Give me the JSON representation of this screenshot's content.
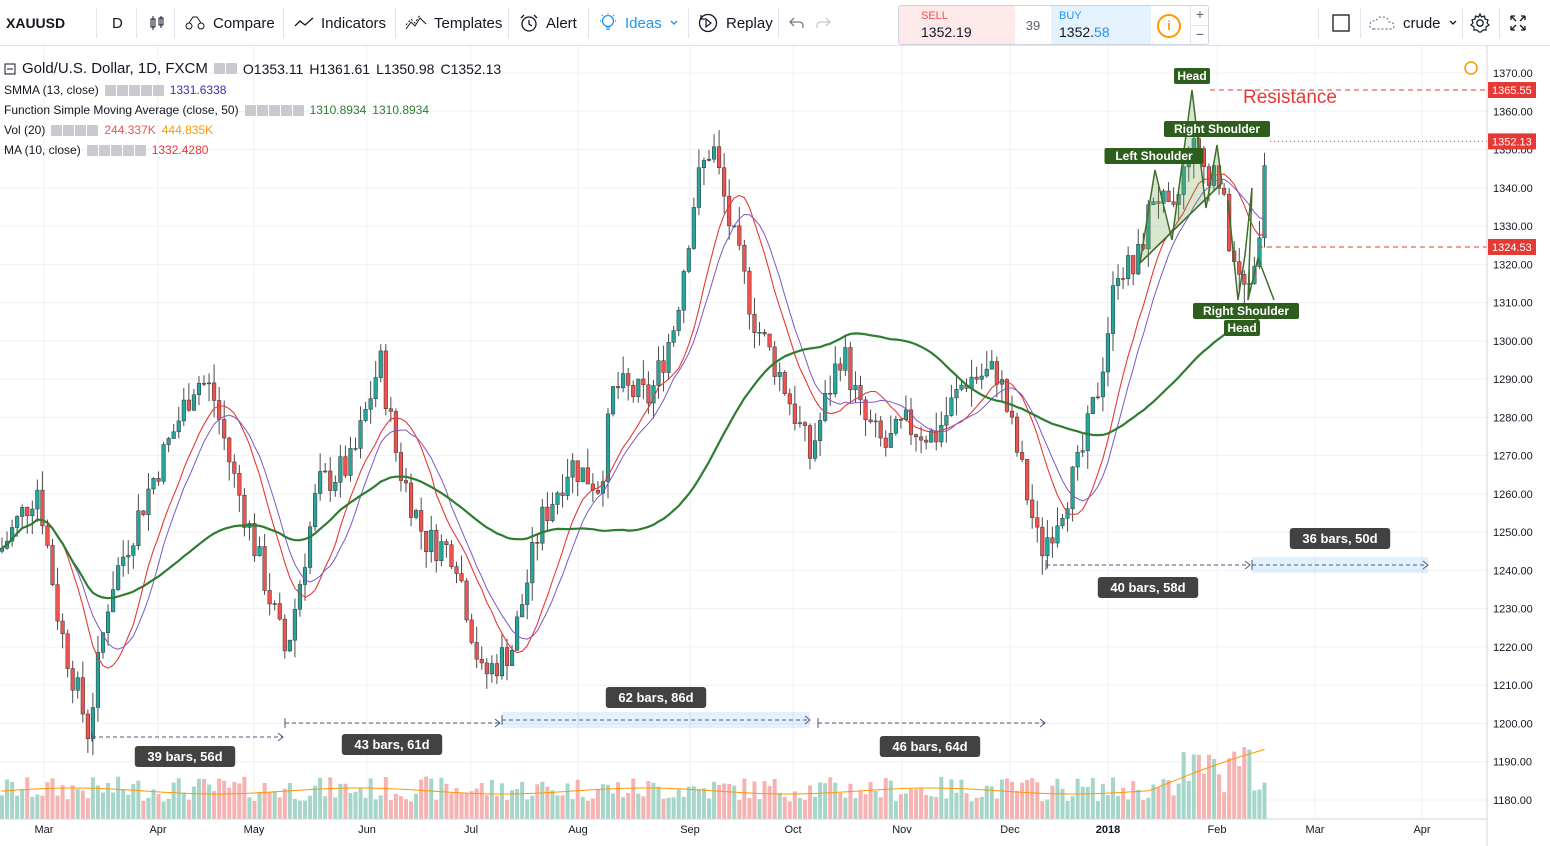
{
  "toolbar": {
    "symbol": "XAUUSD",
    "interval": "D",
    "compare": "Compare",
    "indicators": "Indicators",
    "templates": "Templates",
    "alert": "Alert",
    "ideas": "Ideas",
    "replay": "Replay",
    "sell_label": "SELL",
    "sell_price_main": "1352.",
    "sell_price_tail": "19",
    "spread": "39",
    "buy_label": "BUY",
    "buy_price_main": "1352.",
    "buy_price_tail": "58",
    "layout_name": "crude",
    "plus": "+",
    "minus": "−"
  },
  "legend": {
    "title": "Gold/U.S. Dollar, 1D, FXCM",
    "open": "O1353.11",
    "high": "H1361.61",
    "low": "L1350.98",
    "close": "C1352.13",
    "smma_label": "SMMA (13, close)",
    "smma_value": "1331.6338",
    "fsma_label": "Function Simple Moving Average (close, 50)",
    "fsma_value1": "1310.8934",
    "fsma_value2": "1310.8934",
    "vol_label": "Vol (20)",
    "vol_value1": "244.337K",
    "vol_value2": "444.835K",
    "ma_label": "MA (10, close)",
    "ma_value": "1332.4280"
  },
  "colors": {
    "up": "#26a69a",
    "down": "#ef5350",
    "smma": "#7e57c2",
    "sma50": "#2e7d32",
    "ma10": "#e53935",
    "vol_ma": "#ff9800",
    "annotation_bg": "#424242",
    "pattern_green": "#2e5e1e",
    "resistance": "#e53935"
  },
  "price_axis": {
    "ticks": [
      "1370.00",
      "1360.00",
      "1350.00",
      "1340.00",
      "1330.00",
      "1320.00",
      "1310.00",
      "1300.00",
      "1290.00",
      "1280.00",
      "1270.00",
      "1260.00",
      "1250.00",
      "1240.00",
      "1230.00",
      "1220.00",
      "1210.00",
      "1200.00",
      "1190.00",
      "1180.00"
    ],
    "last_price": "1352.13",
    "line_high": "1365.55",
    "line_low": "1324.53"
  },
  "time_axis": {
    "labels": [
      "Mar",
      "Apr",
      "May",
      "Jun",
      "Jul",
      "Aug",
      "Sep",
      "Oct",
      "Nov",
      "Dec",
      "2018",
      "Feb",
      "Mar",
      "Apr"
    ]
  },
  "annotations": {
    "head_top": "Head",
    "resistance": "Resistance",
    "right_shoulder_top": "Right Shoulder",
    "left_shoulder": "Left Shoulder",
    "right_shoulder_bottom": "Right Shoulder",
    "head_bottom": "Head",
    "ranges": [
      {
        "text": "39 bars, 56d"
      },
      {
        "text": "43 bars, 61d"
      },
      {
        "text": "62 bars, 86d"
      },
      {
        "text": "46 bars, 64d"
      },
      {
        "text": "40 bars, 58d"
      },
      {
        "text": "36 bars, 50d"
      }
    ]
  },
  "chart_data": {
    "type": "candlestick",
    "symbol": "XAUUSD",
    "interval": "1D",
    "ylim": [
      1175,
      1375
    ],
    "months": [
      "Mar",
      "Apr",
      "May",
      "Jun",
      "Jul",
      "Aug",
      "Sep",
      "Oct",
      "Nov",
      "Dec",
      "Jan",
      "Feb"
    ],
    "monthly_close": [
      1249,
      1267,
      1268,
      1242,
      1269,
      1322,
      1280,
      1271,
      1275,
      1302,
      1345,
      1318
    ],
    "key_points": [
      {
        "label": "Mar low",
        "value": 1196
      },
      {
        "label": "Apr high",
        "value": 1295
      },
      {
        "label": "May low",
        "value": 1214
      },
      {
        "label": "Jun high",
        "value": 1296
      },
      {
        "label": "Jul low",
        "value": 1205
      },
      {
        "label": "Sep high",
        "value": 1357
      },
      {
        "label": "Dec low",
        "value": 1236
      },
      {
        "label": "Jan high",
        "value": 1366
      },
      {
        "label": "last close",
        "value": 1352.13
      }
    ],
    "resistance_level": 1365.55,
    "support_level": 1324.53
  }
}
